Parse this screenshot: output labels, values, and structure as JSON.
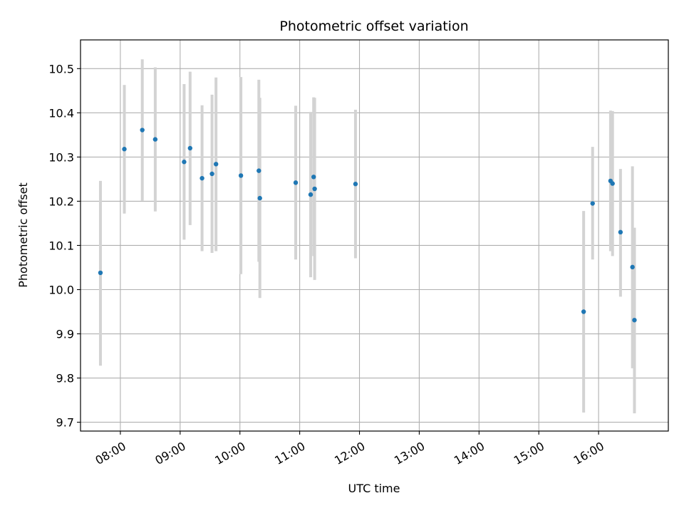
{
  "chart_data": {
    "type": "scatter",
    "title": "Photometric offset variation",
    "xlabel": "UTC time",
    "ylabel": "Photometric offset",
    "xlim": [
      "07:20",
      "17:10"
    ],
    "ylim": [
      9.68,
      10.565
    ],
    "grid": true,
    "colors": {
      "point": "#1f77b4",
      "errorbar": "#d3d3d3",
      "grid": "#b0b0b0"
    },
    "x_ticks": [
      "08:00",
      "09:00",
      "10:00",
      "11:00",
      "12:00",
      "13:00",
      "14:00",
      "15:00",
      "16:00"
    ],
    "y_ticks": [
      "9.7",
      "9.8",
      "9.9",
      "10.0",
      "10.1",
      "10.2",
      "10.3",
      "10.4",
      "10.5"
    ],
    "points": [
      {
        "x": "07:40",
        "y": 10.038,
        "low": 9.828,
        "high": 10.246
      },
      {
        "x": "08:04",
        "y": 10.318,
        "low": 10.172,
        "high": 10.463
      },
      {
        "x": "08:22",
        "y": 10.361,
        "low": 10.201,
        "high": 10.521
      },
      {
        "x": "08:35",
        "y": 10.34,
        "low": 10.177,
        "high": 10.503
      },
      {
        "x": "09:04",
        "y": 10.289,
        "low": 10.113,
        "high": 10.465
      },
      {
        "x": "09:10",
        "y": 10.32,
        "low": 10.146,
        "high": 10.493
      },
      {
        "x": "09:22",
        "y": 10.252,
        "low": 10.087,
        "high": 10.417
      },
      {
        "x": "09:32",
        "y": 10.262,
        "low": 10.083,
        "high": 10.441
      },
      {
        "x": "09:36",
        "y": 10.284,
        "low": 10.087,
        "high": 10.48
      },
      {
        "x": "10:01",
        "y": 10.258,
        "low": 10.035,
        "high": 10.481
      },
      {
        "x": "10:19",
        "y": 10.269,
        "low": 10.063,
        "high": 10.475
      },
      {
        "x": "10:20",
        "y": 10.207,
        "low": 9.981,
        "high": 10.434
      },
      {
        "x": "10:56",
        "y": 10.242,
        "low": 10.068,
        "high": 10.416
      },
      {
        "x": "11:11",
        "y": 10.215,
        "low": 10.028,
        "high": 10.402
      },
      {
        "x": "11:14",
        "y": 10.255,
        "low": 10.076,
        "high": 10.435
      },
      {
        "x": "11:15",
        "y": 10.228,
        "low": 10.022,
        "high": 10.434
      },
      {
        "x": "11:56",
        "y": 10.239,
        "low": 10.071,
        "high": 10.407
      },
      {
        "x": "15:45",
        "y": 9.95,
        "low": 9.722,
        "high": 10.178
      },
      {
        "x": "15:54",
        "y": 10.195,
        "low": 10.068,
        "high": 10.323
      },
      {
        "x": "16:12",
        "y": 10.246,
        "low": 10.087,
        "high": 10.405
      },
      {
        "x": "16:14",
        "y": 10.24,
        "low": 10.076,
        "high": 10.404
      },
      {
        "x": "16:22",
        "y": 10.13,
        "low": 9.984,
        "high": 10.273
      },
      {
        "x": "16:34",
        "y": 10.051,
        "low": 9.822,
        "high": 10.279
      },
      {
        "x": "16:36",
        "y": 9.931,
        "low": 9.72,
        "high": 10.14
      }
    ]
  }
}
